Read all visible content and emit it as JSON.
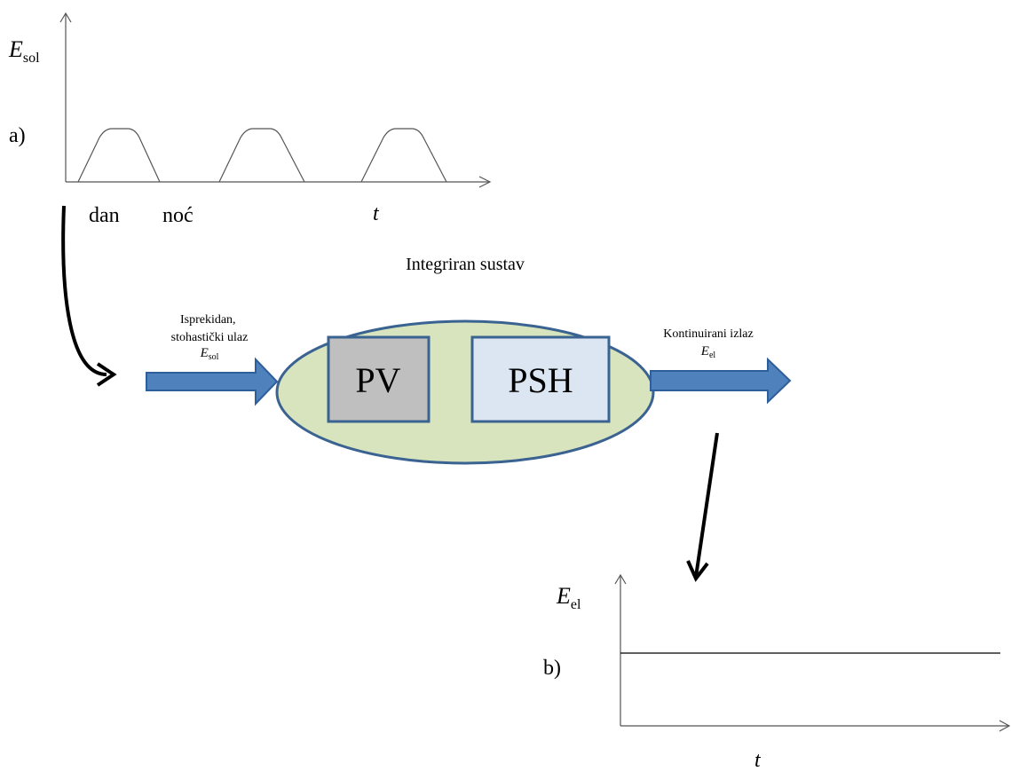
{
  "chart_a": {
    "y_symbol": "E",
    "y_subscript": "sol",
    "panel": "a)",
    "day": "dan",
    "night": "noć",
    "x_label": "t"
  },
  "system": {
    "title": "Integriran sustav",
    "blocks": [
      "PV",
      "PSH"
    ]
  },
  "input": {
    "lines": [
      "Isprekidan,",
      "stohastički ulaz"
    ],
    "symbol": "E",
    "subscript": "sol"
  },
  "output": {
    "lines": [
      "Kontinuirani izlaz"
    ],
    "symbol": "E",
    "subscript": "el"
  },
  "chart_b": {
    "y_symbol": "E",
    "y_subscript": "el",
    "panel": "b)",
    "x_label": "t"
  }
}
